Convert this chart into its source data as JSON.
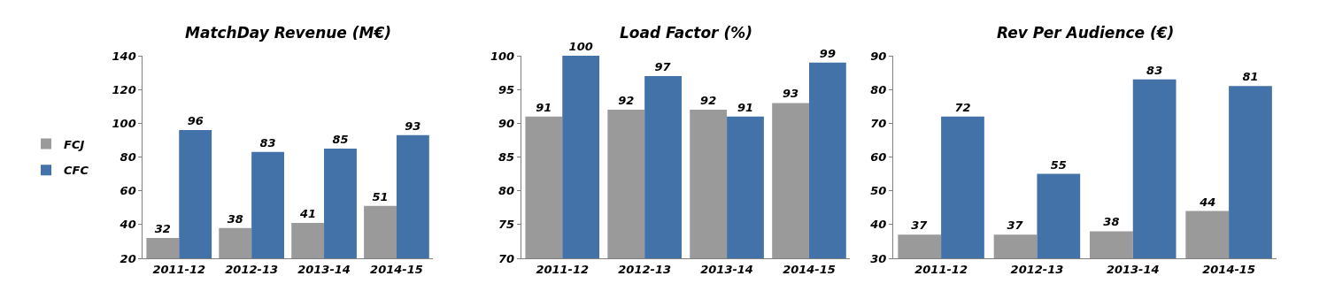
{
  "chart_data": [
    {
      "type": "bar",
      "title": "MatchDay Revenue (M€)",
      "categories": [
        "2011-12",
        "2012-13",
        "2013-14",
        "2014-15"
      ],
      "series": [
        {
          "name": "FCJ",
          "color": "#9a9a9a",
          "values": [
            32,
            38,
            41,
            51
          ]
        },
        {
          "name": "CFC",
          "color": "#4272a8",
          "values": [
            96,
            83,
            85,
            93
          ]
        }
      ],
      "ylim": [
        20,
        140
      ],
      "yticks": [
        20,
        40,
        60,
        80,
        100,
        120,
        140
      ],
      "data_labels": true,
      "grid": false,
      "legend": "left"
    },
    {
      "type": "bar",
      "title": "Load Factor (%)",
      "categories": [
        "2011-12",
        "2012-13",
        "2013-14",
        "2014-15"
      ],
      "series": [
        {
          "color": "#9a9a9a",
          "values": [
            91,
            92,
            92,
            93
          ]
        },
        {
          "color": "#4272a8",
          "values": [
            100,
            97,
            91,
            99
          ]
        }
      ],
      "ylim": [
        70,
        100
      ],
      "yticks": [
        70,
        75,
        80,
        85,
        90,
        95,
        100
      ],
      "data_labels": true,
      "grid": false,
      "legend": false
    },
    {
      "type": "bar",
      "title": "Rev Per Audience (€)",
      "categories": [
        "2011-12",
        "2012-13",
        "2013-14",
        "2014-15"
      ],
      "series": [
        {
          "color": "#9a9a9a",
          "values": [
            37,
            37,
            38,
            44
          ]
        },
        {
          "color": "#4272a8",
          "values": [
            72,
            55,
            83,
            81
          ]
        }
      ],
      "ylim": [
        30,
        90
      ],
      "yticks": [
        30,
        40,
        50,
        60,
        70,
        80,
        90
      ],
      "data_labels": true,
      "grid": false,
      "legend": false
    }
  ]
}
